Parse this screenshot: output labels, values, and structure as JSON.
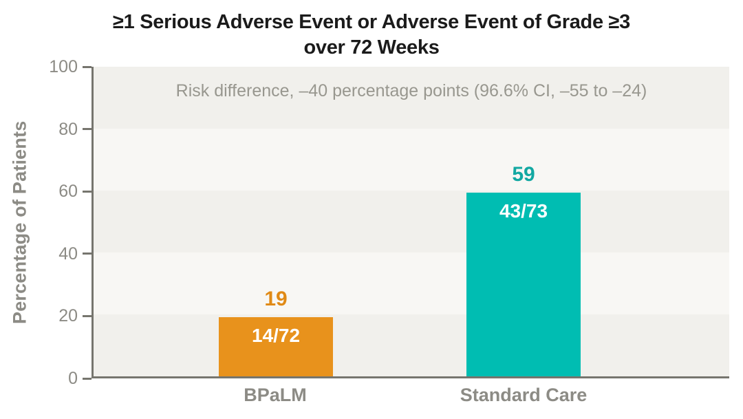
{
  "chart_data": {
    "type": "bar",
    "title": "≥1 Serious Adverse Event or Adverse Event of Grade ≥3 over 72 Weeks",
    "title_lines": [
      "≥1 Serious Adverse Event or Adverse Event of Grade ≥3",
      "over 72 Weeks"
    ],
    "annotation": "Risk difference, –40 percentage points (96.6% CI, –55 to –24)",
    "categories": [
      "BPaLM",
      "Standard Care"
    ],
    "values": [
      19,
      59
    ],
    "fractions": [
      "14/72",
      "43/73"
    ],
    "bar_colors": [
      "#E8921C",
      "#00BDB2"
    ],
    "value_label_colors": [
      "#E08A16",
      "#12A8A2"
    ],
    "xlabel": "",
    "ylabel": "Percentage of Patients",
    "yticks": [
      0,
      20,
      40,
      60,
      80,
      100
    ],
    "ylim": [
      0,
      100
    ],
    "grid": "banded-horizontal",
    "legend": "none"
  },
  "colors": {
    "title": "#1b1b1b",
    "axis": "#76756e",
    "label_gray": "#8c8b85",
    "annotation_gray": "#98978f",
    "band_dark": "#f1f0ec",
    "band_light": "#f8f7f4",
    "background": "#ffffff"
  }
}
